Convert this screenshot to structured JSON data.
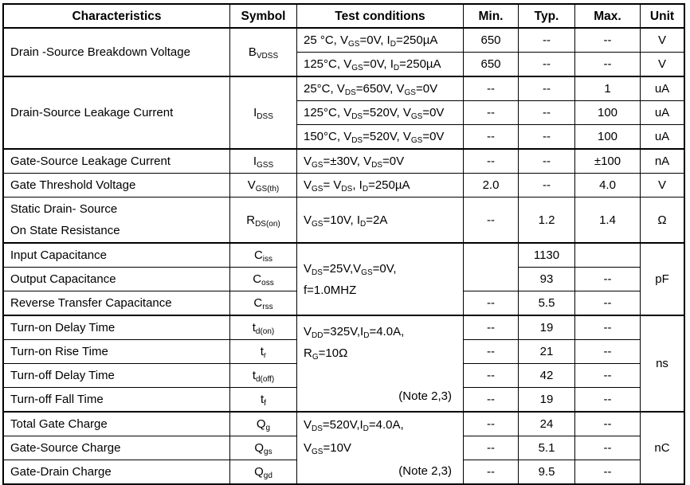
{
  "header": [
    "Characteristics",
    "Symbol",
    "Test conditions",
    "Min.",
    "Typ.",
    "Max.",
    "Unit"
  ],
  "rows": [
    {
      "group": true,
      "cells": [
        {
          "v": [
            "Drain -Source Breakdown Voltage"
          ],
          "span": 2,
          "col": 0
        },
        {
          "v": [
            "B",
            {
              "sub": "VDSS"
            }
          ],
          "span": 2,
          "col": 1
        },
        {
          "v": [
            "25 °C, V",
            {
              "sub": "GS"
            },
            "=0V, I",
            {
              "sub": "D"
            },
            "=250µA"
          ],
          "col": 2
        },
        {
          "v": [
            "650"
          ],
          "col": 3
        },
        {
          "v": [
            "--"
          ],
          "col": 4
        },
        {
          "v": [
            "--"
          ],
          "col": 5
        },
        {
          "v": [
            "V"
          ],
          "col": 6
        }
      ]
    },
    {
      "cells": [
        {
          "v": [
            "125°C, V",
            {
              "sub": "GS"
            },
            "=0V, I",
            {
              "sub": "D"
            },
            "=250µA"
          ],
          "col": 2
        },
        {
          "v": [
            "650"
          ],
          "col": 3
        },
        {
          "v": [
            "--"
          ],
          "col": 4
        },
        {
          "v": [
            "--"
          ],
          "col": 5
        },
        {
          "v": [
            "V"
          ],
          "col": 6
        }
      ]
    },
    {
      "group": true,
      "cells": [
        {
          "v": [
            "Drain-Source Leakage Current"
          ],
          "span": 3,
          "col": 0
        },
        {
          "v": [
            "I",
            {
              "sub": "DSS"
            }
          ],
          "span": 3,
          "col": 1
        },
        {
          "v": [
            "25°C, V",
            {
              "sub": "DS"
            },
            "=650V, V",
            {
              "sub": "GS"
            },
            "=0V"
          ],
          "col": 2
        },
        {
          "v": [
            "--"
          ],
          "col": 3
        },
        {
          "v": [
            "--"
          ],
          "col": 4
        },
        {
          "v": [
            "1"
          ],
          "col": 5
        },
        {
          "v": [
            "uA"
          ],
          "col": 6
        }
      ]
    },
    {
      "cells": [
        {
          "v": [
            "125°C, V",
            {
              "sub": "DS"
            },
            "=520V, V",
            {
              "sub": "GS"
            },
            "=0V"
          ],
          "col": 2
        },
        {
          "v": [
            "--"
          ],
          "col": 3
        },
        {
          "v": [
            "--"
          ],
          "col": 4
        },
        {
          "v": [
            "100"
          ],
          "col": 5
        },
        {
          "v": [
            "uA"
          ],
          "col": 6
        }
      ]
    },
    {
      "cells": [
        {
          "v": [
            "150°C, V",
            {
              "sub": "DS"
            },
            "=520V, V",
            {
              "sub": "GS"
            },
            "=0V"
          ],
          "col": 2
        },
        {
          "v": [
            "--"
          ],
          "col": 3
        },
        {
          "v": [
            "--"
          ],
          "col": 4
        },
        {
          "v": [
            "100"
          ],
          "col": 5
        },
        {
          "v": [
            "uA"
          ],
          "col": 6
        }
      ]
    },
    {
      "group": true,
      "cells": [
        {
          "v": [
            "Gate-Source Leakage Current"
          ],
          "col": 0
        },
        {
          "v": [
            "I",
            {
              "sub": "GSS"
            }
          ],
          "col": 1
        },
        {
          "v": [
            "V",
            {
              "sub": "GS"
            },
            "=±30V, V",
            {
              "sub": "DS"
            },
            "=0V"
          ],
          "col": 2
        },
        {
          "v": [
            "--"
          ],
          "col": 3
        },
        {
          "v": [
            "--"
          ],
          "col": 4
        },
        {
          "v": [
            "±100"
          ],
          "col": 5
        },
        {
          "v": [
            "nA"
          ],
          "col": 6
        }
      ]
    },
    {
      "cells": [
        {
          "v": [
            "Gate Threshold Voltage"
          ],
          "col": 0
        },
        {
          "v": [
            "V",
            {
              "sub": "GS(th)"
            }
          ],
          "col": 1
        },
        {
          "v": [
            "V",
            {
              "sub": "GS"
            },
            "= V",
            {
              "sub": "DS"
            },
            ", I",
            {
              "sub": "D"
            },
            "=250µA"
          ],
          "col": 2
        },
        {
          "v": [
            "2.0"
          ],
          "col": 3
        },
        {
          "v": [
            "--"
          ],
          "col": 4
        },
        {
          "v": [
            "4.0"
          ],
          "col": 5
        },
        {
          "v": [
            "V"
          ],
          "col": 6
        }
      ]
    },
    {
      "tall": true,
      "cells": [
        {
          "lines": [
            [
              "Static Drain- Source"
            ],
            [
              "On State Resistance"
            ]
          ],
          "col": 0
        },
        {
          "v": [
            "R",
            {
              "sub": "DS(on)"
            }
          ],
          "col": 1
        },
        {
          "v": [
            "V",
            {
              "sub": "GS"
            },
            "=10V, I",
            {
              "sub": "D"
            },
            "=2A"
          ],
          "col": 2
        },
        {
          "v": [
            "--"
          ],
          "col": 3
        },
        {
          "v": [
            "1.2"
          ],
          "col": 4
        },
        {
          "v": [
            "1.4"
          ],
          "col": 5
        },
        {
          "v": [
            "Ω"
          ],
          "col": 6
        }
      ]
    },
    {
      "group": true,
      "cells": [
        {
          "v": [
            "Input Capacitance"
          ],
          "col": 0
        },
        {
          "v": [
            "C",
            {
              "sub": "iss"
            }
          ],
          "col": 1
        },
        {
          "lines": [
            [
              "V",
              {
                "sub": "DS"
              },
              "=25V,V",
              {
                "sub": "GS"
              },
              "=0V,"
            ],
            [
              "f=1.0MHZ"
            ]
          ],
          "span": 3,
          "col": 2
        },
        {
          "v": [
            ""
          ],
          "span": 2,
          "col": 3
        },
        {
          "v": [
            "1130"
          ],
          "col": 4
        },
        {
          "v": [
            ""
          ],
          "col": 5
        },
        {
          "v": [
            "pF"
          ],
          "span": 3,
          "col": 6
        }
      ]
    },
    {
      "cells": [
        {
          "v": [
            "Output Capacitance"
          ],
          "col": 0
        },
        {
          "v": [
            "C",
            {
              "sub": "oss"
            }
          ],
          "col": 1
        },
        {
          "v": [
            "93"
          ],
          "col": 4
        },
        {
          "v": [
            "--"
          ],
          "col": 5
        }
      ]
    },
    {
      "cells": [
        {
          "v": [
            "Reverse Transfer Capacitance"
          ],
          "col": 0
        },
        {
          "v": [
            "C",
            {
              "sub": "rss"
            }
          ],
          "col": 1
        },
        {
          "v": [
            "--"
          ],
          "col": 3
        },
        {
          "v": [
            "5.5"
          ],
          "col": 4
        },
        {
          "v": [
            "--"
          ],
          "col": 5
        }
      ]
    },
    {
      "group": true,
      "cells": [
        {
          "v": [
            "Turn-on Delay Time"
          ],
          "col": 0
        },
        {
          "v": [
            "t",
            {
              "sub": "d(on)"
            }
          ],
          "col": 1
        },
        {
          "lines": [
            [
              "V",
              {
                "sub": "DD"
              },
              "=325V,I",
              {
                "sub": "D"
              },
              "=4.0A,"
            ],
            [
              "R",
              {
                "sub": "G"
              },
              "=10Ω"
            ],
            [
              ""
            ]
          ],
          "note": "(Note 2,3)",
          "span": 4,
          "col": 2
        },
        {
          "v": [
            "--"
          ],
          "col": 3
        },
        {
          "v": [
            "19"
          ],
          "col": 4
        },
        {
          "v": [
            "--"
          ],
          "col": 5
        },
        {
          "v": [
            "ns"
          ],
          "span": 4,
          "col": 6
        }
      ]
    },
    {
      "cells": [
        {
          "v": [
            "Turn-on Rise Time"
          ],
          "col": 0
        },
        {
          "v": [
            "t",
            {
              "sub": "r"
            }
          ],
          "col": 1
        },
        {
          "v": [
            "--"
          ],
          "col": 3
        },
        {
          "v": [
            "21"
          ],
          "col": 4
        },
        {
          "v": [
            "--"
          ],
          "col": 5
        }
      ]
    },
    {
      "cells": [
        {
          "v": [
            "Turn-off Delay Time"
          ],
          "col": 0
        },
        {
          "v": [
            "t",
            {
              "sub": "d(off)"
            }
          ],
          "col": 1
        },
        {
          "v": [
            "--"
          ],
          "col": 3
        },
        {
          "v": [
            "42"
          ],
          "col": 4
        },
        {
          "v": [
            "--"
          ],
          "col": 5
        }
      ]
    },
    {
      "cells": [
        {
          "v": [
            "Turn-off Fall Time"
          ],
          "col": 0
        },
        {
          "v": [
            "t",
            {
              "sub": "f"
            }
          ],
          "col": 1
        },
        {
          "v": [
            "--"
          ],
          "col": 3
        },
        {
          "v": [
            "19"
          ],
          "col": 4
        },
        {
          "v": [
            "--"
          ],
          "col": 5
        }
      ]
    },
    {
      "group": true,
      "cells": [
        {
          "v": [
            "Total Gate Charge"
          ],
          "col": 0
        },
        {
          "v": [
            "Q",
            {
              "sub": "g"
            }
          ],
          "col": 1
        },
        {
          "lines": [
            [
              "V",
              {
                "sub": "DS"
              },
              "=520V,I",
              {
                "sub": "D"
              },
              "=4.0A,"
            ],
            [
              "V",
              {
                "sub": "GS"
              },
              "=10V"
            ]
          ],
          "note": "(Note 2,3)",
          "span": 3,
          "col": 2
        },
        {
          "v": [
            "--"
          ],
          "col": 3
        },
        {
          "v": [
            "24"
          ],
          "col": 4
        },
        {
          "v": [
            "--"
          ],
          "col": 5
        },
        {
          "v": [
            "nC"
          ],
          "span": 3,
          "col": 6
        }
      ]
    },
    {
      "cells": [
        {
          "v": [
            "Gate-Source Charge"
          ],
          "col": 0
        },
        {
          "v": [
            "Q",
            {
              "sub": "gs"
            }
          ],
          "col": 1
        },
        {
          "v": [
            "--"
          ],
          "col": 3
        },
        {
          "v": [
            "5.1"
          ],
          "col": 4
        },
        {
          "v": [
            "--"
          ],
          "col": 5
        }
      ]
    },
    {
      "cells": [
        {
          "v": [
            "Gate-Drain Charge"
          ],
          "col": 0
        },
        {
          "v": [
            "Q",
            {
              "sub": "gd"
            }
          ],
          "col": 1
        },
        {
          "v": [
            "--"
          ],
          "col": 3
        },
        {
          "v": [
            "9.5"
          ],
          "col": 4
        },
        {
          "v": [
            "--"
          ],
          "col": 5
        }
      ]
    }
  ]
}
